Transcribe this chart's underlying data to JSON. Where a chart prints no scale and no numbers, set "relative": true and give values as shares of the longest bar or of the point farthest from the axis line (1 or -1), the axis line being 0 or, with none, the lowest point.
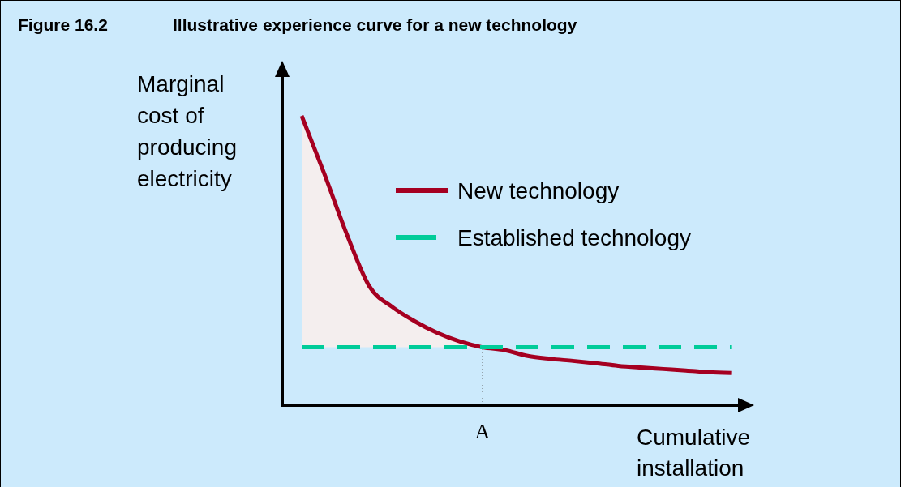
{
  "chart_data": {
    "type": "line",
    "relative": true,
    "title": "Figure 16.2",
    "subtitle": "Illustrative experience curve for a new technology",
    "ylabel": "Marginal cost of producing electricity",
    "xlabel": "Cumulative installation",
    "categories": [
      null,
      null,
      null,
      null,
      null,
      null,
      null,
      null,
      null,
      null,
      null,
      null,
      null,
      null,
      null,
      null,
      null,
      null,
      null,
      null
    ],
    "annotations": [
      {
        "text": "A",
        "y": 0.2
      }
    ],
    "series": [
      {
        "type": "area",
        "color": "#f4eeee",
        "values": [
          1.0,
          0.8,
          0.59,
          0.41,
          0.34,
          0.29,
          0.25,
          0.22,
          0.2,
          null,
          null,
          null,
          null,
          null,
          null,
          null,
          null,
          null,
          null,
          null
        ]
      },
      {
        "name": "New technology",
        "color": "#a50021",
        "line_style": "solid",
        "values": [
          1.0,
          0.8,
          0.59,
          0.41,
          0.34,
          0.29,
          0.25,
          0.22,
          0.2,
          0.19,
          0.17,
          0.16,
          0.153,
          0.145,
          0.136,
          0.13,
          0.125,
          0.12,
          0.114,
          0.111
        ]
      },
      {
        "name": "Established technology",
        "color": "#00cc99",
        "line_style": "dashed",
        "values": [
          0.2,
          0.2,
          0.2,
          0.2,
          0.2,
          0.2,
          0.2,
          0.2,
          0.2,
          0.2,
          0.2,
          0.2,
          0.2,
          0.2,
          0.2,
          0.2,
          0.2,
          0.2,
          0.2,
          0.2
        ]
      }
    ],
    "legend": "top right"
  }
}
